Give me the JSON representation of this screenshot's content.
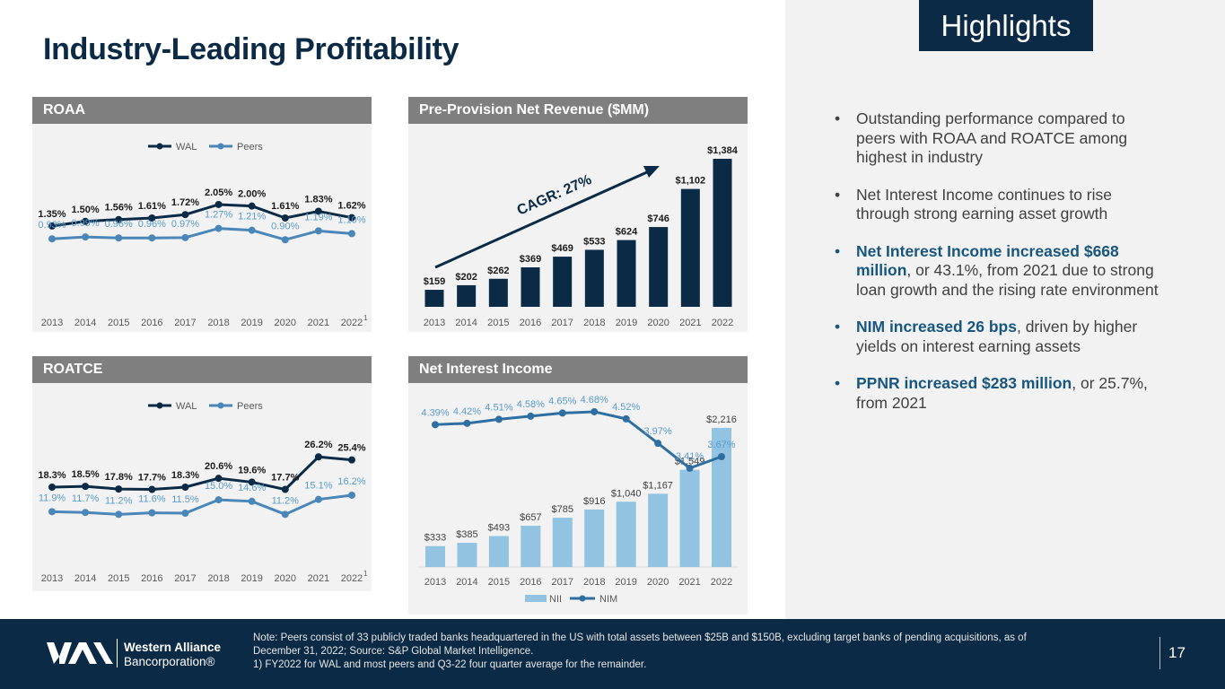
{
  "slide": {
    "title": "Industry-Leading Profitability",
    "tag": "Highlights",
    "page_number": "17"
  },
  "colors": {
    "navy": "#0b2a45",
    "wal_line": "#0b2a45",
    "peers_line": "#4a86b8",
    "peers_label": "#5a9ccc",
    "bar_dark": "#0b2a45",
    "bar_light": "#92c3e2",
    "nim_line": "#2f6ea1",
    "panel_head": "#7f7f7f",
    "panel_bg": "#f2f2f2",
    "accent": "#17567e"
  },
  "panels": {
    "roaa": "ROAA",
    "ppnr": "Pre-Provision Net Revenue ($MM)",
    "roatce": "ROATCE",
    "nii": "Net Interest Income"
  },
  "chart_data": [
    {
      "id": "roaa",
      "type": "line",
      "title": "ROAA",
      "categories": [
        "2013",
        "2014",
        "2015",
        "2016",
        "2017",
        "2018",
        "2019",
        "2020",
        "2021",
        "2022"
      ],
      "last_category_footnote": "1",
      "legend": [
        "WAL",
        "Peers"
      ],
      "legend_position": "top-center",
      "series": [
        {
          "name": "WAL",
          "values": [
            1.35,
            1.5,
            1.56,
            1.61,
            1.72,
            2.05,
            2.0,
            1.61,
            1.83,
            1.62
          ],
          "labels": [
            "1.35%",
            "1.50%",
            "1.56%",
            "1.61%",
            "1.72%",
            "2.05%",
            "2.00%",
            "1.61%",
            "1.83%",
            "1.62%"
          ]
        },
        {
          "name": "Peers",
          "values": [
            0.93,
            0.99,
            0.96,
            0.96,
            0.97,
            1.27,
            1.21,
            0.9,
            1.19,
            1.1
          ],
          "labels": [
            "0.93%",
            "0.99%",
            "0.96%",
            "0.96%",
            "0.97%",
            "1.27%",
            "1.21%",
            "0.90%",
            "1.19%",
            "1.10%"
          ]
        }
      ],
      "ylim": [
        0.0,
        2.4
      ]
    },
    {
      "id": "ppnr",
      "type": "bar",
      "title": "Pre-Provision Net Revenue ($MM)",
      "categories": [
        "2013",
        "2014",
        "2015",
        "2016",
        "2017",
        "2018",
        "2019",
        "2020",
        "2021",
        "2022"
      ],
      "values": [
        159,
        202,
        262,
        369,
        469,
        533,
        624,
        746,
        1102,
        1384
      ],
      "labels": [
        "$159",
        "$202",
        "$262",
        "$369",
        "$469",
        "$533",
        "$624",
        "$746",
        "$1,102",
        "$1,384"
      ],
      "annotation": "CAGR: 27%",
      "ylim": [
        0,
        1384
      ]
    },
    {
      "id": "roatce",
      "type": "line",
      "title": "ROATCE",
      "categories": [
        "2013",
        "2014",
        "2015",
        "2016",
        "2017",
        "2018",
        "2019",
        "2020",
        "2021",
        "2022"
      ],
      "last_category_footnote": "1",
      "legend": [
        "WAL",
        "Peers"
      ],
      "legend_position": "top-center",
      "series": [
        {
          "name": "WAL",
          "values": [
            18.3,
            18.5,
            17.8,
            17.7,
            18.3,
            20.6,
            19.6,
            17.7,
            26.2,
            25.4
          ],
          "labels": [
            "18.3%",
            "18.5%",
            "17.8%",
            "17.7%",
            "18.3%",
            "20.6%",
            "19.6%",
            "17.7%",
            "26.2%",
            "25.4%"
          ]
        },
        {
          "name": "Peers",
          "values": [
            11.9,
            11.7,
            11.2,
            11.6,
            11.5,
            15.0,
            14.6,
            11.2,
            15.1,
            16.2
          ],
          "labels": [
            "11.9%",
            "11.7%",
            "11.2%",
            "11.6%",
            "11.5%",
            "15.0%",
            "14.6%",
            "11.2%",
            "15.1%",
            "16.2%"
          ]
        }
      ],
      "ylim": [
        8,
        30
      ]
    },
    {
      "id": "nii",
      "type": "bar",
      "title": "Net Interest Income",
      "categories": [
        "2013",
        "2014",
        "2015",
        "2016",
        "2017",
        "2018",
        "2019",
        "2020",
        "2021",
        "2022"
      ],
      "legend": [
        "NII",
        "NIM"
      ],
      "legend_position": "bottom-center",
      "series": [
        {
          "name": "NII",
          "type": "bar",
          "values": [
            333,
            385,
            493,
            657,
            785,
            916,
            1040,
            1167,
            1549,
            2216
          ],
          "labels": [
            "$333",
            "$385",
            "$493",
            "$657",
            "$785",
            "$916",
            "$1,040",
            "$1,167",
            "$1,549",
            "$2,216"
          ]
        },
        {
          "name": "NIM",
          "type": "line",
          "values": [
            4.39,
            4.42,
            4.51,
            4.58,
            4.65,
            4.68,
            4.52,
            3.97,
            3.41,
            3.67
          ],
          "labels": [
            "4.39%",
            "4.42%",
            "4.51%",
            "4.58%",
            "4.65%",
            "4.68%",
            "4.52%",
            "3.97%",
            "3.41%",
            "3.67%"
          ]
        }
      ]
    }
  ],
  "bullets": [
    {
      "strong": "",
      "text": "Outstanding performance compared to peers with ROAA and ROATCE among highest in industry",
      "highlight": false
    },
    {
      "strong": "",
      "text": "Net Interest Income continues to rise through strong earning asset growth",
      "highlight": false
    },
    {
      "strong": "Net Interest Income increased $668 million",
      "text": ", or 43.1%, from 2021 due to strong loan growth and the rising rate environment",
      "highlight": true
    },
    {
      "strong": "NIM increased 26 bps",
      "text": ", driven by higher yields on interest earning assets",
      "highlight": true
    },
    {
      "strong": "PPNR increased $283 million",
      "text": ", or 25.7%, from 2021",
      "highlight": true
    }
  ],
  "footer": {
    "note_lines": [
      "Note: Peers consist of 33 publicly traded banks headquartered in the US with total assets between $25B and $150B, excluding target banks of pending acquisitions, as of",
      "December 31, 2022; Source: S&P Global Market Intelligence.",
      "1)   FY2022 for WAL and most peers and Q3-22 four quarter average for the remainder."
    ],
    "logo_line1": "Western Alliance",
    "logo_line2": "Bancorporation®"
  }
}
